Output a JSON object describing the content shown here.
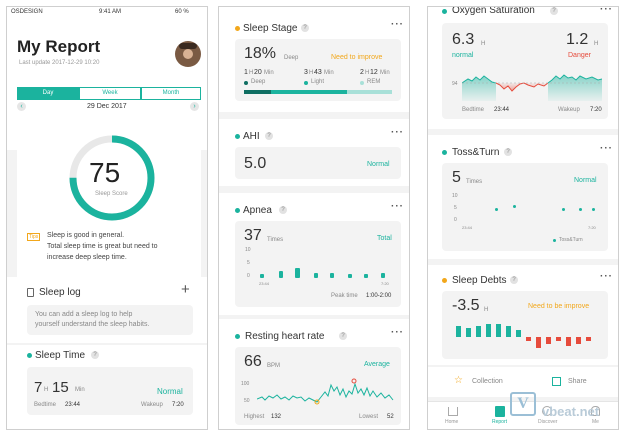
{
  "status_bar": {
    "carrier": "OSDESIGN",
    "time": "9:41 AM",
    "battery": "60 %"
  },
  "report": {
    "title": "My Report",
    "last_update": "Last update 2017-12-29 10:20",
    "tabs": [
      "Day",
      "Week",
      "Month"
    ],
    "date": "29 Dec 2017",
    "score": "75",
    "score_label": "Sleep Score",
    "score_fraction": 0.75,
    "tips_badge": "Tips",
    "tip_text": [
      "Sleep is good in general.",
      "Total sleep time is great but need to",
      "increase deep sleep time."
    ]
  },
  "sleep_log": {
    "title": "Sleep log",
    "add": "+",
    "hint": [
      "You can add a sleep log to help",
      "yourself understand the sleep habits."
    ]
  },
  "sleep_time": {
    "title": "Sleep Time",
    "hours": "7",
    "h_unit": "H",
    "minutes": "15",
    "m_unit": "Min",
    "status": "Normal",
    "bedtime_label": "Bedtime",
    "bedtime": "23:44",
    "wakeup_label": "Wakeup",
    "wakeup": "7:20"
  },
  "sleep_stage": {
    "title": "Sleep Stage",
    "percent": "18%",
    "percent_label": "Deep",
    "status": "Need to improve",
    "deep": {
      "h": "1",
      "h_unit": "H",
      "m": "20",
      "m_unit": "Min",
      "label": "Deep"
    },
    "light": {
      "h": "3",
      "h_unit": "H",
      "m": "43",
      "m_unit": "Min",
      "label": "Light"
    },
    "rem": {
      "h": "2",
      "h_unit": "H",
      "m": "12",
      "m_unit": "Min",
      "label": "REM"
    }
  },
  "ahi": {
    "title": "AHI",
    "value": "5.0",
    "status": "Normal"
  },
  "apnea": {
    "title": "Apnea",
    "value": "37",
    "unit": "Times",
    "status": "Total",
    "y_ticks": [
      "10",
      "5",
      "0"
    ],
    "x_ticks": [
      "23:44",
      "7:20"
    ],
    "peak_label": "Peak time",
    "peak": "1:00-2:00"
  },
  "heart": {
    "title": "Resting heart rate",
    "value": "66",
    "unit": "BPM",
    "status": "Average",
    "y_ticks": [
      "100",
      "50"
    ],
    "highest_label": "Highest",
    "highest": "132",
    "lowest_label": "Lowest",
    "lowest": "52"
  },
  "oxygen": {
    "title": "Oxygen Saturation",
    "value": "6.3",
    "unit": "H",
    "status": "normal",
    "value2": "1.2",
    "unit2": "H",
    "status2": "Danger",
    "y_tick": "94",
    "bedtime_label": "Bedtime",
    "bedtime": "23:44",
    "wakeup_label": "Wakeup",
    "wakeup": "7:20"
  },
  "toss": {
    "title": "Toss&Turn",
    "value": "5",
    "unit": "Times",
    "status": "Normal",
    "y_ticks": [
      "10",
      "5",
      "0"
    ],
    "x_ticks": [
      "23:44",
      "7:20"
    ],
    "legend": "Toss&Turn"
  },
  "debts": {
    "title": "Sleep Debts",
    "value": "-3.5",
    "unit": "H",
    "status": "Need to be improve"
  },
  "actions": {
    "collection": "Collection",
    "share": "Share"
  },
  "nav": {
    "home": "Home",
    "report": "Report",
    "discover": "Discover",
    "me": "Me"
  },
  "watermark": "vbeat.net",
  "colors": {
    "teal": "#1bb39e",
    "orange": "#f2a71b",
    "red": "#e64b3c"
  }
}
